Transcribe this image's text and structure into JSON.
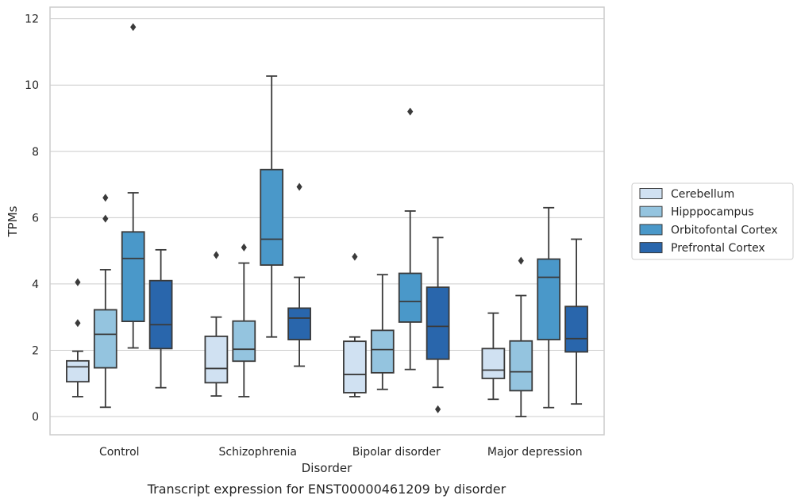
{
  "chart_data": {
    "type": "boxplot",
    "caption": "Transcript expression for ENST00000461209 by disorder",
    "xlabel": "Disorder",
    "ylabel": "TPMs",
    "ylim": [
      -0.55,
      12.35
    ],
    "yticks": [
      0,
      2,
      4,
      6,
      8,
      10,
      12
    ],
    "grid": true,
    "legend_position": "right",
    "categories": [
      "Control",
      "Schizophrenia",
      "Bipolar disorder",
      "Major depression"
    ],
    "series": [
      {
        "name": "Cerebellum",
        "color": "#d0e1f2",
        "boxes": [
          {
            "whislo": 0.6,
            "q1": 1.05,
            "med": 1.5,
            "q3": 1.68,
            "whishi": 1.97,
            "fliers": [
              2.82,
              4.05
            ]
          },
          {
            "whislo": 0.62,
            "q1": 1.02,
            "med": 1.45,
            "q3": 2.42,
            "whishi": 3.0,
            "fliers": [
              4.87
            ]
          },
          {
            "whislo": 0.6,
            "q1": 0.72,
            "med": 1.27,
            "q3": 2.27,
            "whishi": 2.4,
            "fliers": [
              4.82
            ]
          },
          {
            "whislo": 0.52,
            "q1": 1.15,
            "med": 1.4,
            "q3": 2.05,
            "whishi": 3.12,
            "fliers": []
          }
        ]
      },
      {
        "name": "Hipppocampus",
        "color": "#94c4df",
        "boxes": [
          {
            "whislo": 0.28,
            "q1": 1.47,
            "med": 2.48,
            "q3": 3.22,
            "whishi": 4.43,
            "fliers": [
              5.97,
              6.6
            ]
          },
          {
            "whislo": 0.6,
            "q1": 1.67,
            "med": 2.03,
            "q3": 2.88,
            "whishi": 4.63,
            "fliers": [
              5.1
            ]
          },
          {
            "whislo": 0.82,
            "q1": 1.32,
            "med": 2.02,
            "q3": 2.6,
            "whishi": 4.28,
            "fliers": []
          },
          {
            "whislo": 0.0,
            "q1": 0.78,
            "med": 1.35,
            "q3": 2.28,
            "whishi": 3.65,
            "fliers": [
              4.7
            ]
          }
        ]
      },
      {
        "name": "Orbitofontal Cortex",
        "color": "#4a98c9",
        "boxes": [
          {
            "whislo": 2.07,
            "q1": 2.87,
            "med": 4.77,
            "q3": 5.57,
            "whishi": 6.75,
            "fliers": [
              11.75
            ]
          },
          {
            "whislo": 2.4,
            "q1": 4.57,
            "med": 5.35,
            "q3": 7.45,
            "whishi": 10.27,
            "fliers": []
          },
          {
            "whislo": 1.42,
            "q1": 2.85,
            "med": 3.47,
            "q3": 4.32,
            "whishi": 6.2,
            "fliers": [
              9.2
            ]
          },
          {
            "whislo": 0.27,
            "q1": 2.32,
            "med": 4.2,
            "q3": 4.75,
            "whishi": 6.3,
            "fliers": []
          }
        ]
      },
      {
        "name": "Prefrontal Cortex",
        "color": "#2966ac",
        "boxes": [
          {
            "whislo": 0.87,
            "q1": 2.05,
            "med": 2.77,
            "q3": 4.1,
            "whishi": 5.03,
            "fliers": []
          },
          {
            "whislo": 1.52,
            "q1": 2.32,
            "med": 2.97,
            "q3": 3.27,
            "whishi": 4.2,
            "fliers": [
              6.93
            ]
          },
          {
            "whislo": 0.88,
            "q1": 1.73,
            "med": 2.72,
            "q3": 3.9,
            "whishi": 5.4,
            "fliers": [
              0.22
            ]
          },
          {
            "whislo": 0.38,
            "q1": 1.95,
            "med": 2.35,
            "q3": 3.32,
            "whishi": 5.35,
            "fliers": []
          }
        ]
      }
    ]
  },
  "colors": {
    "background": "#ffffff",
    "grid": "#cccccc",
    "spine": "#cccccc",
    "box_line": "#3a3a3a",
    "text": "#262626"
  }
}
